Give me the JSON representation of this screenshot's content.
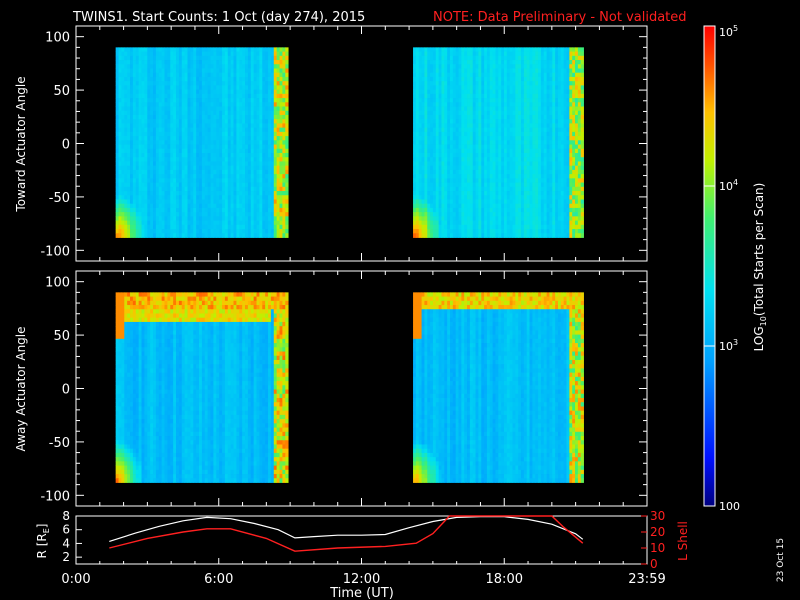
{
  "header": {
    "title": "TWINS1. Start Counts:  1 Oct (day 274), 2015",
    "note": "NOTE: Data Preliminary - Not validated"
  },
  "colors": {
    "note": "#ff2020",
    "orbit_r": "#ffffff",
    "orbit_l": "#ff2020",
    "background": "#000000"
  },
  "colorbar": {
    "label": "LOG10(Total Starts per Scan)",
    "label_base": "LOG",
    "label_sub": "10",
    "label_rest": "(Total Starts per Scan)",
    "ticks": [
      "10^5",
      "10^4",
      "10^3",
      "100"
    ],
    "range": [
      100,
      100000
    ],
    "scale": "log"
  },
  "footer": {
    "xlabel": "Time (UT)",
    "date_stamp": "23 Oct 15"
  },
  "chart_data": [
    {
      "type": "heatmap",
      "ylabel": "Toward Actuator Angle",
      "ylim": [
        -110,
        110
      ],
      "yticks": [
        "100",
        "50",
        "0",
        "-50",
        "-100"
      ],
      "xlim": [
        "0:00",
        "23:59"
      ],
      "blocks": [
        {
          "x_start": "1:40",
          "x_end": "8:55",
          "y_range": [
            -88,
            90
          ],
          "baseline_log10": 3.2,
          "edge_log10": 4.6
        },
        {
          "x_start": "14:10",
          "x_end": "21:20",
          "y_range": [
            -88,
            90
          ],
          "baseline_log10": 3.3,
          "edge_log10": 4.5
        }
      ]
    },
    {
      "type": "heatmap",
      "ylabel": "Away Actuator Angle",
      "ylim": [
        -110,
        110
      ],
      "yticks": [
        "100",
        "50",
        "0",
        "-50",
        "-100"
      ],
      "xlim": [
        "0:00",
        "23:59"
      ],
      "blocks": [
        {
          "x_start": "1:40",
          "x_end": "8:55",
          "y_range": [
            -88,
            90
          ],
          "baseline_log10": 3.1,
          "edge_log10": 4.7
        },
        {
          "x_start": "14:10",
          "x_end": "21:20",
          "y_range": [
            -88,
            90
          ],
          "baseline_log10": 3.1,
          "edge_log10": 4.6
        }
      ]
    },
    {
      "type": "line",
      "ylabel_left": "R [RE]",
      "ylabel_left_base": "R [R",
      "ylabel_left_sub": "E",
      "ylabel_left_end": "]",
      "ylabel_right": "L Shell",
      "ylim_left": [
        1,
        8
      ],
      "ylim_right": [
        0,
        30
      ],
      "yticks_left": [
        "8",
        "6",
        "4",
        "2"
      ],
      "yticks_right": [
        "30",
        "20",
        "10",
        "0"
      ],
      "xticks": [
        "0:00",
        "6:00",
        "12:00",
        "18:00",
        "23:59"
      ],
      "xlim": [
        0,
        24
      ],
      "series": [
        {
          "name": "R",
          "axis": "left",
          "x": [
            1.4,
            2.5,
            3.5,
            4.5,
            5.5,
            6.5,
            7.5,
            8.5,
            9.2,
            10,
            11,
            12,
            13,
            14,
            15,
            16,
            17,
            18,
            19,
            20,
            21.0,
            21.3
          ],
          "y": [
            4.3,
            5.5,
            6.5,
            7.3,
            7.8,
            7.6,
            6.9,
            6.0,
            4.8,
            5.0,
            5.2,
            5.2,
            5.3,
            6.3,
            7.2,
            7.8,
            7.9,
            7.9,
            7.5,
            6.8,
            5.4,
            4.6
          ]
        },
        {
          "name": "L Shell",
          "axis": "right",
          "x": [
            1.4,
            3.0,
            4.5,
            5.5,
            6.5,
            8.0,
            9.2,
            11.0,
            13.0,
            14.3,
            15.0,
            15.7,
            20.0,
            20.5,
            21.3
          ],
          "y": [
            10,
            16,
            20,
            22,
            22,
            16,
            8,
            10,
            11,
            13,
            19,
            30,
            30,
            23,
            13
          ]
        }
      ]
    }
  ]
}
